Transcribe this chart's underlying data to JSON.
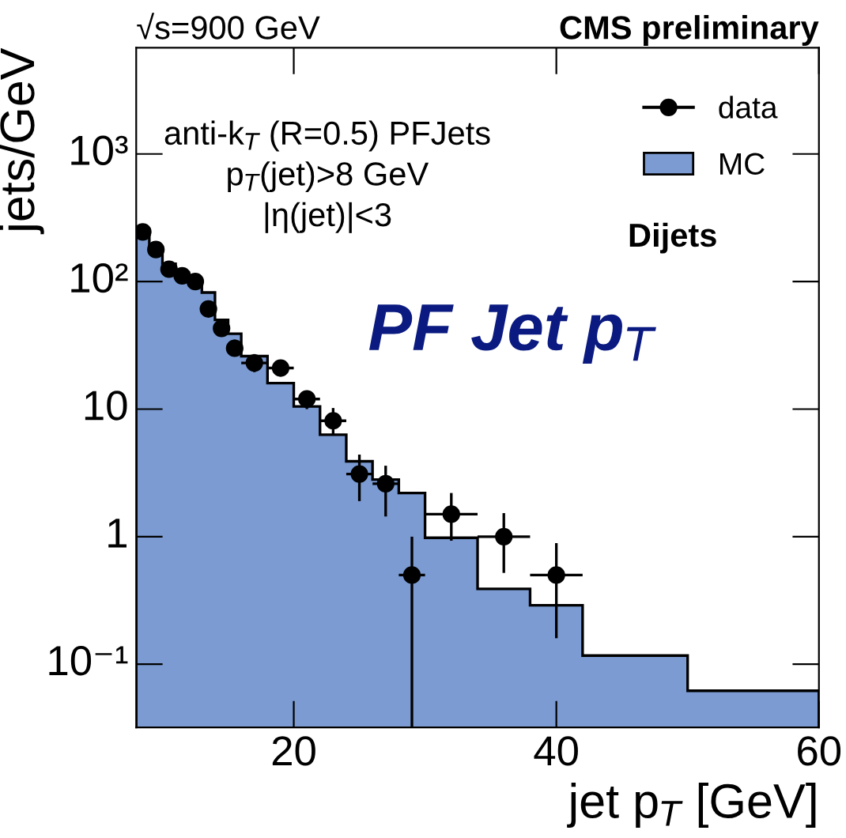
{
  "chart_data": {
    "type": "histogram",
    "title": "CMS preliminary",
    "subtitle": "√s=900 GeV",
    "xlabel": "jet p$_{T}$ [GeV]",
    "ylabel": "jets/GeV",
    "annotations": [
      "anti-k$_{T}$ (R=0.5) PFJets",
      "p$_{T}$(jet)>8 GeV",
      "|η(jet)|<3",
      "Dijets",
      "PF Jet p$_{T}$"
    ],
    "bins": [
      8,
      9,
      10,
      11,
      12,
      13,
      14,
      15,
      16,
      18,
      20,
      22,
      24,
      26,
      28,
      30,
      34,
      38,
      42,
      50,
      60
    ],
    "series": [
      {
        "name": "MC",
        "color": "#7b9bd2",
        "values": [
          257,
          177,
          138,
          118,
          104,
          82,
          50,
          39,
          26,
          16,
          10.5,
          6.3,
          3.9,
          2.8,
          2.2,
          0.98,
          0.39,
          0.29,
          0.117,
          0.062
        ]
      },
      {
        "name": "data",
        "type": "scatter",
        "color": "#000000",
        "marker": "circle",
        "x": [
          8.5,
          9.5,
          10.5,
          11.5,
          12.5,
          13.5,
          14.5,
          15.5,
          17,
          19,
          21,
          23,
          25,
          27,
          29,
          32,
          36,
          40
        ],
        "values": [
          245,
          178,
          125,
          111,
          100,
          61,
          43,
          30,
          23,
          21,
          12,
          8.1,
          3.1,
          2.6,
          0.5,
          1.5,
          1.0,
          0.5
        ],
        "errors": [
          null,
          null,
          null,
          null,
          null,
          null,
          [
            38,
            49
          ],
          [
            26,
            35
          ],
          [
            19.5,
            27
          ],
          [
            18,
            24
          ],
          [
            10,
            14
          ],
          [
            6.2,
            10.2
          ],
          [
            1.9,
            4.4
          ],
          [
            1.44,
            3.6
          ],
          [
            0.032,
            1.0
          ],
          [
            0.93,
            2.2
          ],
          [
            0.52,
            1.53
          ],
          [
            0.16,
            0.89
          ]
        ],
        "xerrors": [
          0.5,
          0.5,
          0.5,
          0.5,
          0.5,
          0.5,
          0.5,
          0.5,
          1,
          1,
          1,
          1,
          1,
          1,
          1,
          2,
          2,
          2
        ]
      }
    ],
    "log": "y",
    "legend": "top right",
    "xlim": [
      8,
      60
    ],
    "xticks": [
      20,
      40,
      60
    ],
    "ylim": [
      0.032,
      6800
    ],
    "yticks": [
      {
        "value": 0.1,
        "label": "10⁻¹"
      },
      1,
      10,
      {
        "value": 100,
        "label": "10²"
      },
      {
        "value": 1000,
        "label": "10³"
      }
    ]
  }
}
